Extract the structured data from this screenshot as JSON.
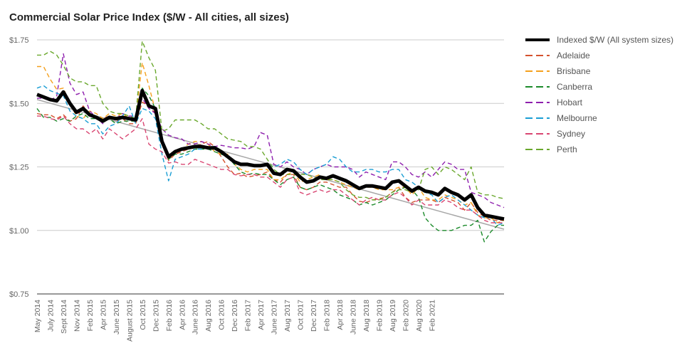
{
  "chart_data": {
    "type": "line",
    "title": "Commercial Solar Price Index ($/W - All cities, all sizes)",
    "xlabel": "",
    "ylabel": "",
    "ylim": [
      0.75,
      1.75
    ],
    "y_ticks": [
      "$0.75",
      "$1.00",
      "$1.25",
      "$1.50",
      "$1.75"
    ],
    "y_tick_values": [
      0.75,
      1.0,
      1.25,
      1.5,
      1.75
    ],
    "x_tick_labels": [
      "May 2014",
      "July 2014",
      "Sept 2014",
      "Nov 2014",
      "Feb 2015",
      "Apr 2015",
      "June 2015",
      "August 2015",
      "Oct 2015",
      "Dec 2015",
      "Feb 2016",
      "Apr 2016",
      "June 2016",
      "Aug 2016",
      "Oct 2016",
      "Dec 2016",
      "Feb 2017",
      "Apr 2017",
      "June 2017",
      "Aug 2017",
      "Oct 2017",
      "Dec 2017",
      "Feb 2018",
      "Apr 2018",
      "June 2018",
      "Aug 2018",
      "Feb 2019",
      "Aug 2019",
      "Feb 2020",
      "Aug 2020",
      "Feb 2021"
    ],
    "x_tick_positions": [
      0,
      2,
      4,
      6,
      8,
      10,
      12,
      14,
      16,
      18,
      20,
      22,
      24,
      26,
      28,
      30,
      32,
      34,
      36,
      38,
      40,
      42,
      44,
      46,
      48,
      50,
      52,
      54,
      56,
      58,
      60
    ],
    "grid": true,
    "legend_position": "right",
    "series": [
      {
        "name": "Indexed $/W (All system sizes)",
        "color": "#000000",
        "style": "solid",
        "width": 5,
        "values": [
          1.535,
          1.525,
          1.515,
          1.51,
          1.545,
          1.5,
          1.465,
          1.48,
          1.455,
          1.445,
          1.43,
          1.445,
          1.44,
          1.445,
          1.44,
          1.435,
          1.55,
          1.49,
          1.48,
          1.35,
          1.29,
          1.31,
          1.32,
          1.325,
          1.33,
          1.33,
          1.325,
          1.325,
          1.31,
          1.29,
          1.27,
          1.26,
          1.26,
          1.255,
          1.255,
          1.26,
          1.225,
          1.22,
          1.24,
          1.235,
          1.21,
          1.19,
          1.195,
          1.21,
          1.205,
          1.215,
          1.205,
          1.195,
          1.18,
          1.165,
          1.175,
          1.175,
          1.17,
          1.165,
          1.19,
          1.195,
          1.175,
          1.155,
          1.17,
          1.155,
          1.15,
          1.14,
          1.165,
          1.15,
          1.14,
          1.12,
          1.14,
          1.09,
          1.06,
          1.055,
          1.05,
          1.045
        ]
      },
      {
        "name": "Adelaide",
        "color": "#d4522e",
        "style": "dashed",
        "values": [
          1.46,
          1.455,
          1.455,
          1.44,
          1.455,
          1.43,
          1.44,
          1.49,
          1.46,
          1.445,
          1.44,
          1.45,
          1.43,
          1.44,
          1.42,
          1.42,
          1.505,
          1.49,
          1.46,
          1.34,
          1.275,
          1.3,
          1.31,
          1.32,
          1.33,
          1.34,
          1.35,
          1.33,
          1.29,
          1.25,
          1.22,
          1.225,
          1.21,
          1.215,
          1.22,
          1.23,
          1.2,
          1.19,
          1.22,
          1.22,
          1.17,
          1.16,
          1.17,
          1.19,
          1.19,
          1.18,
          1.17,
          1.17,
          1.14,
          1.115,
          1.11,
          1.12,
          1.125,
          1.13,
          1.15,
          1.17,
          1.13,
          1.11,
          1.12,
          1.12,
          1.12,
          1.11,
          1.13,
          1.12,
          1.11,
          1.08,
          1.11,
          1.07,
          1.055,
          1.04,
          1.04,
          1.04
        ]
      },
      {
        "name": "Brisbane",
        "color": "#f4a01d",
        "style": "dashed",
        "values": [
          1.645,
          1.645,
          1.595,
          1.555,
          1.56,
          1.5,
          1.45,
          1.44,
          1.47,
          1.46,
          1.44,
          1.46,
          1.45,
          1.46,
          1.44,
          1.44,
          1.66,
          1.57,
          1.47,
          1.35,
          1.28,
          1.31,
          1.32,
          1.34,
          1.35,
          1.35,
          1.34,
          1.31,
          1.3,
          1.3,
          1.26,
          1.24,
          1.23,
          1.24,
          1.24,
          1.24,
          1.2,
          1.2,
          1.22,
          1.23,
          1.19,
          1.2,
          1.21,
          1.22,
          1.2,
          1.2,
          1.19,
          1.18,
          1.17,
          1.16,
          1.17,
          1.17,
          1.16,
          1.16,
          1.16,
          1.17,
          1.17,
          1.14,
          1.17,
          1.13,
          1.12,
          1.12,
          1.14,
          1.13,
          1.12,
          1.1,
          1.11,
          1.06,
          1.05,
          1.05,
          1.03,
          1.04
        ]
      },
      {
        "name": "Canberra",
        "color": "#1b8a2a",
        "style": "dashed",
        "values": [
          1.48,
          1.445,
          1.445,
          1.43,
          1.44,
          1.43,
          1.45,
          1.46,
          1.44,
          1.44,
          1.44,
          1.44,
          1.42,
          1.43,
          1.43,
          1.43,
          1.56,
          1.53,
          1.48,
          1.35,
          1.28,
          1.3,
          1.3,
          1.31,
          1.32,
          1.32,
          1.32,
          1.31,
          1.3,
          1.29,
          1.26,
          1.23,
          1.22,
          1.225,
          1.22,
          1.22,
          1.2,
          1.18,
          1.2,
          1.21,
          1.17,
          1.16,
          1.17,
          1.18,
          1.17,
          1.16,
          1.14,
          1.13,
          1.12,
          1.1,
          1.11,
          1.1,
          1.11,
          1.12,
          1.14,
          1.16,
          1.17,
          1.16,
          1.13,
          1.05,
          1.02,
          1.0,
          1.0,
          1.0,
          1.01,
          1.02,
          1.02,
          1.04,
          0.955,
          0.995,
          1.02,
          1.02
        ]
      },
      {
        "name": "Hobart",
        "color": "#8e1fae",
        "style": "dashed",
        "values": [
          1.52,
          1.52,
          1.51,
          1.53,
          1.695,
          1.58,
          1.535,
          1.545,
          1.47,
          1.445,
          1.42,
          1.45,
          1.44,
          1.46,
          1.45,
          1.45,
          1.52,
          1.48,
          1.46,
          1.4,
          1.375,
          1.365,
          1.36,
          1.34,
          1.34,
          1.35,
          1.34,
          1.33,
          1.335,
          1.33,
          1.325,
          1.325,
          1.32,
          1.33,
          1.385,
          1.375,
          1.26,
          1.25,
          1.27,
          1.25,
          1.24,
          1.22,
          1.24,
          1.25,
          1.26,
          1.25,
          1.25,
          1.25,
          1.24,
          1.21,
          1.23,
          1.22,
          1.21,
          1.2,
          1.27,
          1.27,
          1.25,
          1.22,
          1.21,
          1.23,
          1.21,
          1.24,
          1.27,
          1.26,
          1.24,
          1.24,
          1.15,
          1.14,
          1.13,
          1.11,
          1.1,
          1.09
        ]
      },
      {
        "name": "Melbourne",
        "color": "#1a9ed4",
        "style": "dashed",
        "values": [
          1.56,
          1.57,
          1.55,
          1.54,
          1.53,
          1.47,
          1.45,
          1.44,
          1.42,
          1.42,
          1.38,
          1.41,
          1.42,
          1.45,
          1.49,
          1.42,
          1.48,
          1.47,
          1.44,
          1.3,
          1.195,
          1.28,
          1.29,
          1.3,
          1.32,
          1.32,
          1.33,
          1.33,
          1.31,
          1.29,
          1.27,
          1.26,
          1.26,
          1.25,
          1.26,
          1.26,
          1.25,
          1.26,
          1.28,
          1.27,
          1.24,
          1.22,
          1.24,
          1.25,
          1.26,
          1.29,
          1.28,
          1.25,
          1.23,
          1.23,
          1.24,
          1.24,
          1.23,
          1.23,
          1.24,
          1.24,
          1.2,
          1.19,
          1.17,
          1.15,
          1.14,
          1.11,
          1.13,
          1.14,
          1.12,
          1.1,
          1.08,
          1.06,
          1.05,
          1.05,
          1.02,
          1.03
        ]
      },
      {
        "name": "Sydney",
        "color": "#d94672",
        "style": "dashed",
        "values": [
          1.45,
          1.45,
          1.44,
          1.435,
          1.45,
          1.42,
          1.4,
          1.4,
          1.38,
          1.4,
          1.36,
          1.4,
          1.38,
          1.36,
          1.38,
          1.4,
          1.44,
          1.34,
          1.32,
          1.31,
          1.265,
          1.27,
          1.26,
          1.26,
          1.28,
          1.27,
          1.26,
          1.25,
          1.24,
          1.24,
          1.22,
          1.215,
          1.22,
          1.22,
          1.21,
          1.21,
          1.19,
          1.17,
          1.2,
          1.21,
          1.15,
          1.14,
          1.15,
          1.16,
          1.15,
          1.16,
          1.16,
          1.14,
          1.12,
          1.1,
          1.12,
          1.13,
          1.12,
          1.12,
          1.14,
          1.15,
          1.13,
          1.1,
          1.12,
          1.1,
          1.1,
          1.1,
          1.12,
          1.11,
          1.09,
          1.08,
          1.08,
          1.06,
          1.04,
          1.03,
          1.03,
          1.03
        ]
      },
      {
        "name": "Perth",
        "color": "#6aa82d",
        "style": "dashed",
        "values": [
          1.69,
          1.69,
          1.705,
          1.69,
          1.65,
          1.6,
          1.585,
          1.585,
          1.57,
          1.57,
          1.5,
          1.47,
          1.46,
          1.46,
          1.45,
          1.44,
          1.745,
          1.68,
          1.63,
          1.39,
          1.4,
          1.435,
          1.435,
          1.435,
          1.435,
          1.42,
          1.4,
          1.4,
          1.38,
          1.36,
          1.355,
          1.35,
          1.33,
          1.33,
          1.32,
          1.28,
          1.24,
          1.22,
          1.22,
          1.22,
          1.22,
          1.22,
          1.21,
          1.2,
          1.2,
          1.2,
          1.19,
          1.16,
          1.14,
          1.13,
          1.13,
          1.12,
          1.12,
          1.13,
          1.15,
          1.16,
          1.16,
          1.15,
          1.16,
          1.24,
          1.25,
          1.22,
          1.25,
          1.24,
          1.22,
          1.2,
          1.25,
          1.15,
          1.14,
          1.14,
          1.13,
          1.125
        ]
      }
    ],
    "trendline": {
      "color": "#a8a8a8",
      "start": 1.515,
      "end": 1.005
    }
  }
}
